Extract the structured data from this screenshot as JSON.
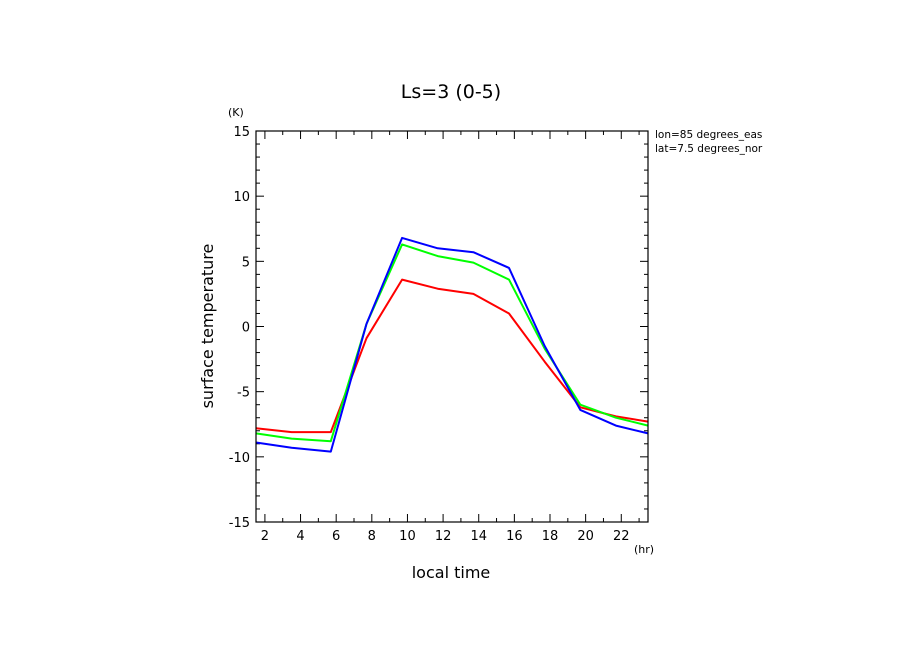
{
  "chart_data": {
    "type": "line",
    "title": "Ls=3 (0-5)",
    "xlabel": "local time",
    "ylabel": "surface temperature",
    "x_unit": "(hr)",
    "y_unit": "(K)",
    "xlim": [
      1.5,
      23.5
    ],
    "ylim": [
      -15,
      15
    ],
    "x_ticks": [
      2,
      4,
      6,
      8,
      10,
      12,
      14,
      16,
      18,
      20,
      22
    ],
    "y_ticks": [
      -15,
      -10,
      -5,
      0,
      5,
      10,
      15
    ],
    "annotations": [
      "lon=85 degrees_eas",
      "lat=7.5 degrees_nor"
    ],
    "grid": false,
    "x": [
      1.5,
      3.5,
      5.7,
      7.7,
      9.7,
      11.7,
      13.7,
      15.7,
      17.7,
      19.7,
      21.7,
      23.5
    ],
    "series": [
      {
        "color": "#ff0000",
        "values": [
          -7.8,
          -8.1,
          -8.1,
          -0.9,
          3.6,
          2.9,
          2.5,
          1.0,
          -2.7,
          -6.2,
          -6.9,
          -7.3
        ]
      },
      {
        "color": "#00ff00",
        "values": [
          -8.2,
          -8.6,
          -8.8,
          0.2,
          6.3,
          5.4,
          4.9,
          3.6,
          -1.7,
          -6.0,
          -7.0,
          -7.6
        ]
      },
      {
        "color": "#0000ff",
        "values": [
          -8.9,
          -9.3,
          -9.6,
          0.2,
          6.8,
          6.0,
          5.7,
          4.5,
          -1.5,
          -6.4,
          -7.6,
          -8.2
        ]
      }
    ]
  }
}
